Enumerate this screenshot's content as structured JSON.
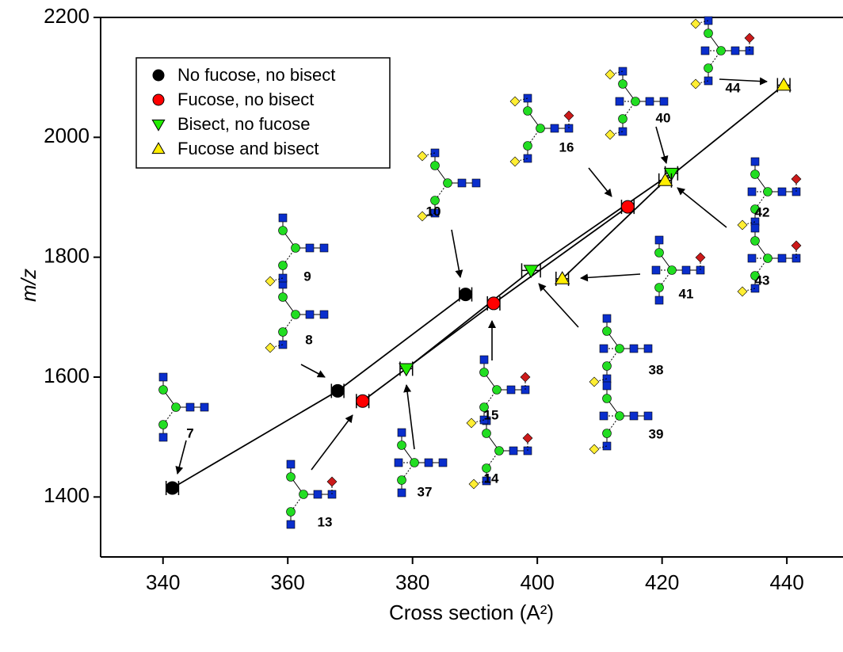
{
  "chart_data": {
    "type": "scatter",
    "xlabel": "Cross section (A²)",
    "ylabel": "m/z",
    "xlim": [
      330,
      449
    ],
    "ylim": [
      1300,
      2200
    ],
    "xticks": [
      340,
      360,
      380,
      400,
      420,
      440
    ],
    "yticks": [
      1400,
      1600,
      1800,
      2000,
      2200
    ],
    "legend": "upper left",
    "series": [
      {
        "name": "No fucose, no bisect",
        "color": "#000000",
        "marker": "circle",
        "x": [
          341.5,
          368,
          388.5
        ],
        "y": [
          1415,
          1577,
          1738
        ],
        "xerr": [
          1,
          1,
          1
        ]
      },
      {
        "name": "Fucose, no bisect",
        "color": "#ff0000",
        "marker": "circle",
        "x": [
          372,
          393,
          414.5
        ],
        "y": [
          1560,
          1723,
          1884
        ],
        "xerr": [
          1,
          1,
          1
        ]
      },
      {
        "name": "Bisect, no fucose",
        "color": "#22ee00",
        "marker": "triangle-down",
        "x": [
          379,
          399,
          421.5
        ],
        "y": [
          1614,
          1778,
          1940
        ],
        "xerr": [
          1,
          1.5,
          1
        ]
      },
      {
        "name": "Fucose and bisect",
        "color": "#ffee00",
        "marker": "triangle-up",
        "x": [
          404,
          420.5,
          439.5
        ],
        "y": [
          1764,
          1928,
          2087
        ],
        "xerr": [
          1,
          1,
          1
        ]
      }
    ],
    "annotations": [
      "7",
      "8",
      "9",
      "10",
      "13",
      "14",
      "15",
      "37",
      "16",
      "38",
      "39",
      "40",
      "41",
      "42",
      "43",
      "44"
    ]
  }
}
